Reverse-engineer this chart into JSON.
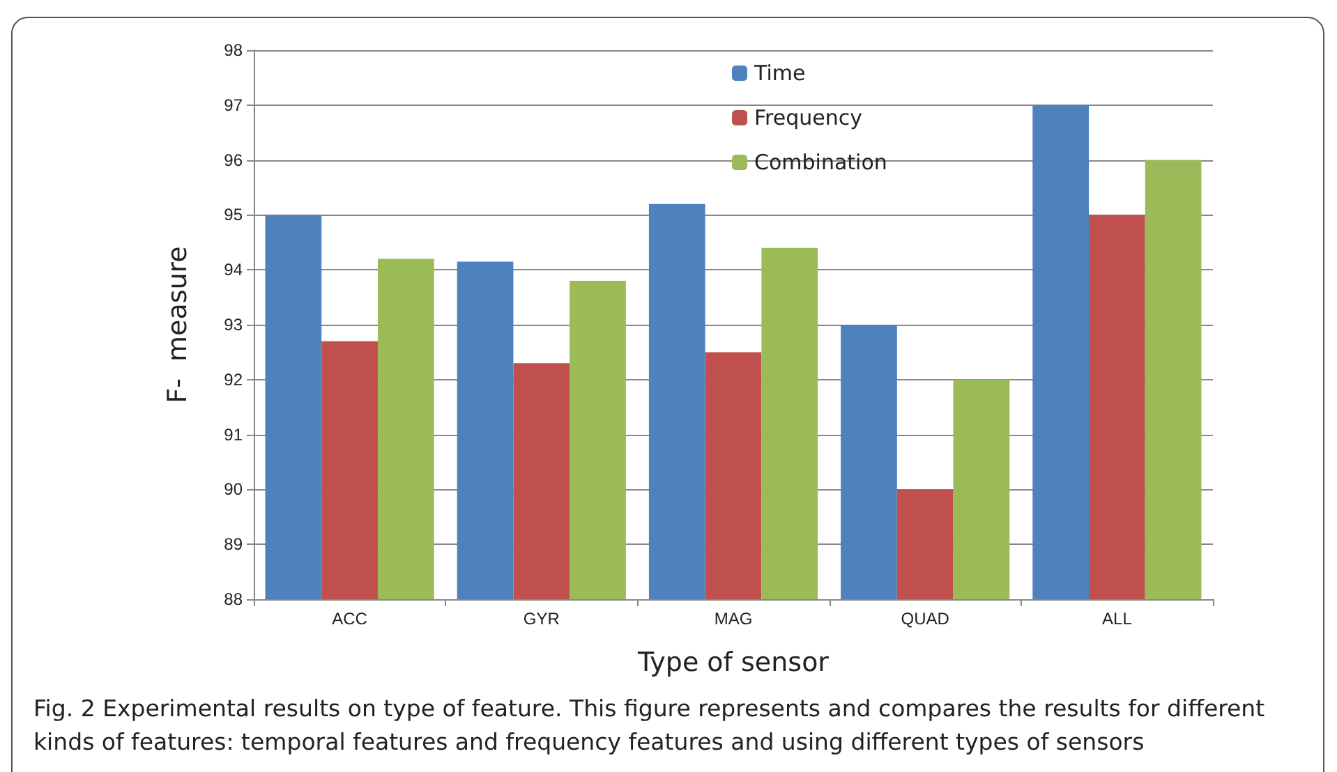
{
  "chart_data": {
    "type": "bar",
    "xlabel": "Type of sensor",
    "ylabel": "F-  measure",
    "categories": [
      "ACC",
      "GYR",
      "MAG",
      "QUAD",
      "ALL"
    ],
    "series": [
      {
        "name": "Time",
        "color": "#4f81bd",
        "values": [
          95,
          94.15,
          95.2,
          93,
          97
        ]
      },
      {
        "name": "Frequency",
        "color": "#c0504d",
        "values": [
          92.7,
          92.3,
          92.5,
          90,
          95
        ]
      },
      {
        "name": "Combination",
        "color": "#9bbb59",
        "values": [
          94.2,
          93.8,
          94.4,
          92,
          96
        ]
      }
    ],
    "ylim": [
      88,
      98
    ],
    "yticks": [
      88,
      89,
      90,
      91,
      92,
      93,
      94,
      95,
      96,
      97,
      98
    ],
    "grid": "y",
    "legend": "top",
    "annotations": [
      "Fig. 2  Experimental results on type of feature. This figure represents and compares the results for different kinds of features: temporal features and frequency features and using different types of sensors"
    ]
  }
}
